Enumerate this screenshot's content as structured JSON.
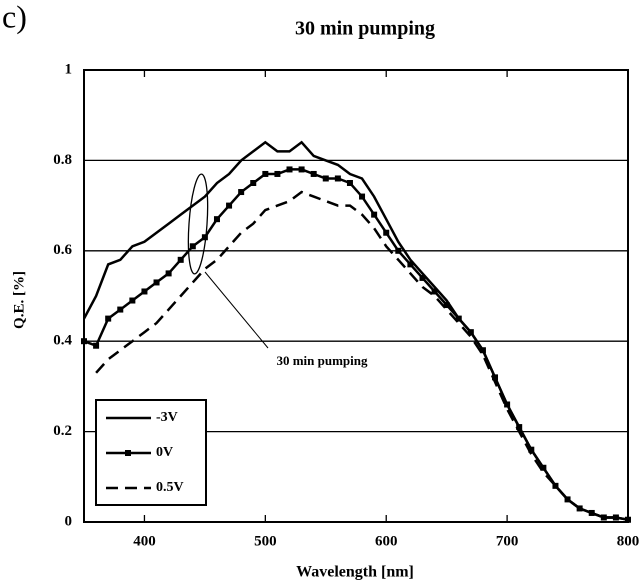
{
  "panel_label": "c)",
  "chart_data": {
    "type": "line",
    "title": "30 min pumping",
    "xlabel": "Wavelength [nm]",
    "ylabel": "Q.E. [%]",
    "annotation": "30 min pumping",
    "x": [
      350,
      360,
      370,
      380,
      390,
      400,
      410,
      420,
      430,
      440,
      450,
      460,
      470,
      480,
      490,
      500,
      510,
      520,
      530,
      540,
      550,
      560,
      570,
      580,
      590,
      600,
      610,
      620,
      630,
      640,
      650,
      660,
      670,
      680,
      690,
      700,
      710,
      720,
      730,
      740,
      750,
      760,
      770,
      780,
      790,
      800
    ],
    "series": [
      {
        "name": "-3V",
        "color": "#000000",
        "style": "solid",
        "marker": false,
        "values": [
          0.45,
          0.5,
          0.57,
          0.58,
          0.61,
          0.62,
          0.64,
          0.66,
          0.68,
          0.7,
          0.72,
          0.75,
          0.77,
          0.8,
          0.82,
          0.84,
          0.82,
          0.82,
          0.84,
          0.81,
          0.8,
          0.79,
          0.77,
          0.76,
          0.72,
          0.67,
          0.62,
          0.58,
          0.55,
          0.52,
          0.49,
          0.45,
          0.42,
          0.38,
          0.32,
          0.26,
          0.21,
          0.16,
          0.12,
          0.08,
          0.05,
          0.03,
          0.02,
          0.01,
          0.01,
          0.005
        ]
      },
      {
        "name": "0V",
        "color": "#000000",
        "style": "solid",
        "marker": true,
        "values": [
          0.4,
          0.39,
          0.45,
          0.47,
          0.49,
          0.51,
          0.53,
          0.55,
          0.58,
          0.61,
          0.63,
          0.67,
          0.7,
          0.73,
          0.75,
          0.77,
          0.77,
          0.78,
          0.78,
          0.77,
          0.76,
          0.76,
          0.75,
          0.72,
          0.68,
          0.64,
          0.6,
          0.57,
          0.54,
          0.51,
          0.48,
          0.45,
          0.42,
          0.38,
          0.32,
          0.26,
          0.21,
          0.16,
          0.12,
          0.08,
          0.05,
          0.03,
          0.02,
          0.01,
          0.01,
          0.005
        ]
      },
      {
        "name": "0.5V",
        "color": "#000000",
        "style": "dashed",
        "marker": false,
        "values": [
          null,
          0.33,
          0.36,
          0.38,
          0.4,
          0.42,
          0.44,
          0.47,
          0.5,
          0.53,
          0.56,
          0.58,
          0.61,
          0.64,
          0.66,
          0.69,
          0.7,
          0.71,
          0.73,
          0.72,
          0.71,
          0.7,
          0.7,
          0.68,
          0.65,
          0.61,
          0.58,
          0.55,
          0.52,
          0.5,
          0.47,
          0.44,
          0.41,
          0.37,
          0.31,
          0.25,
          0.2,
          0.15,
          0.11,
          0.08,
          0.05,
          0.03,
          0.02,
          0.01,
          0.01,
          0.005
        ]
      }
    ],
    "xlim": [
      350,
      800
    ],
    "xticks": [
      400,
      500,
      600,
      700,
      800
    ],
    "ylim": [
      0,
      1
    ],
    "yticks": [
      0,
      0.2,
      0.4,
      0.6,
      0.8,
      1
    ],
    "grid": true,
    "legend": "lower left"
  }
}
